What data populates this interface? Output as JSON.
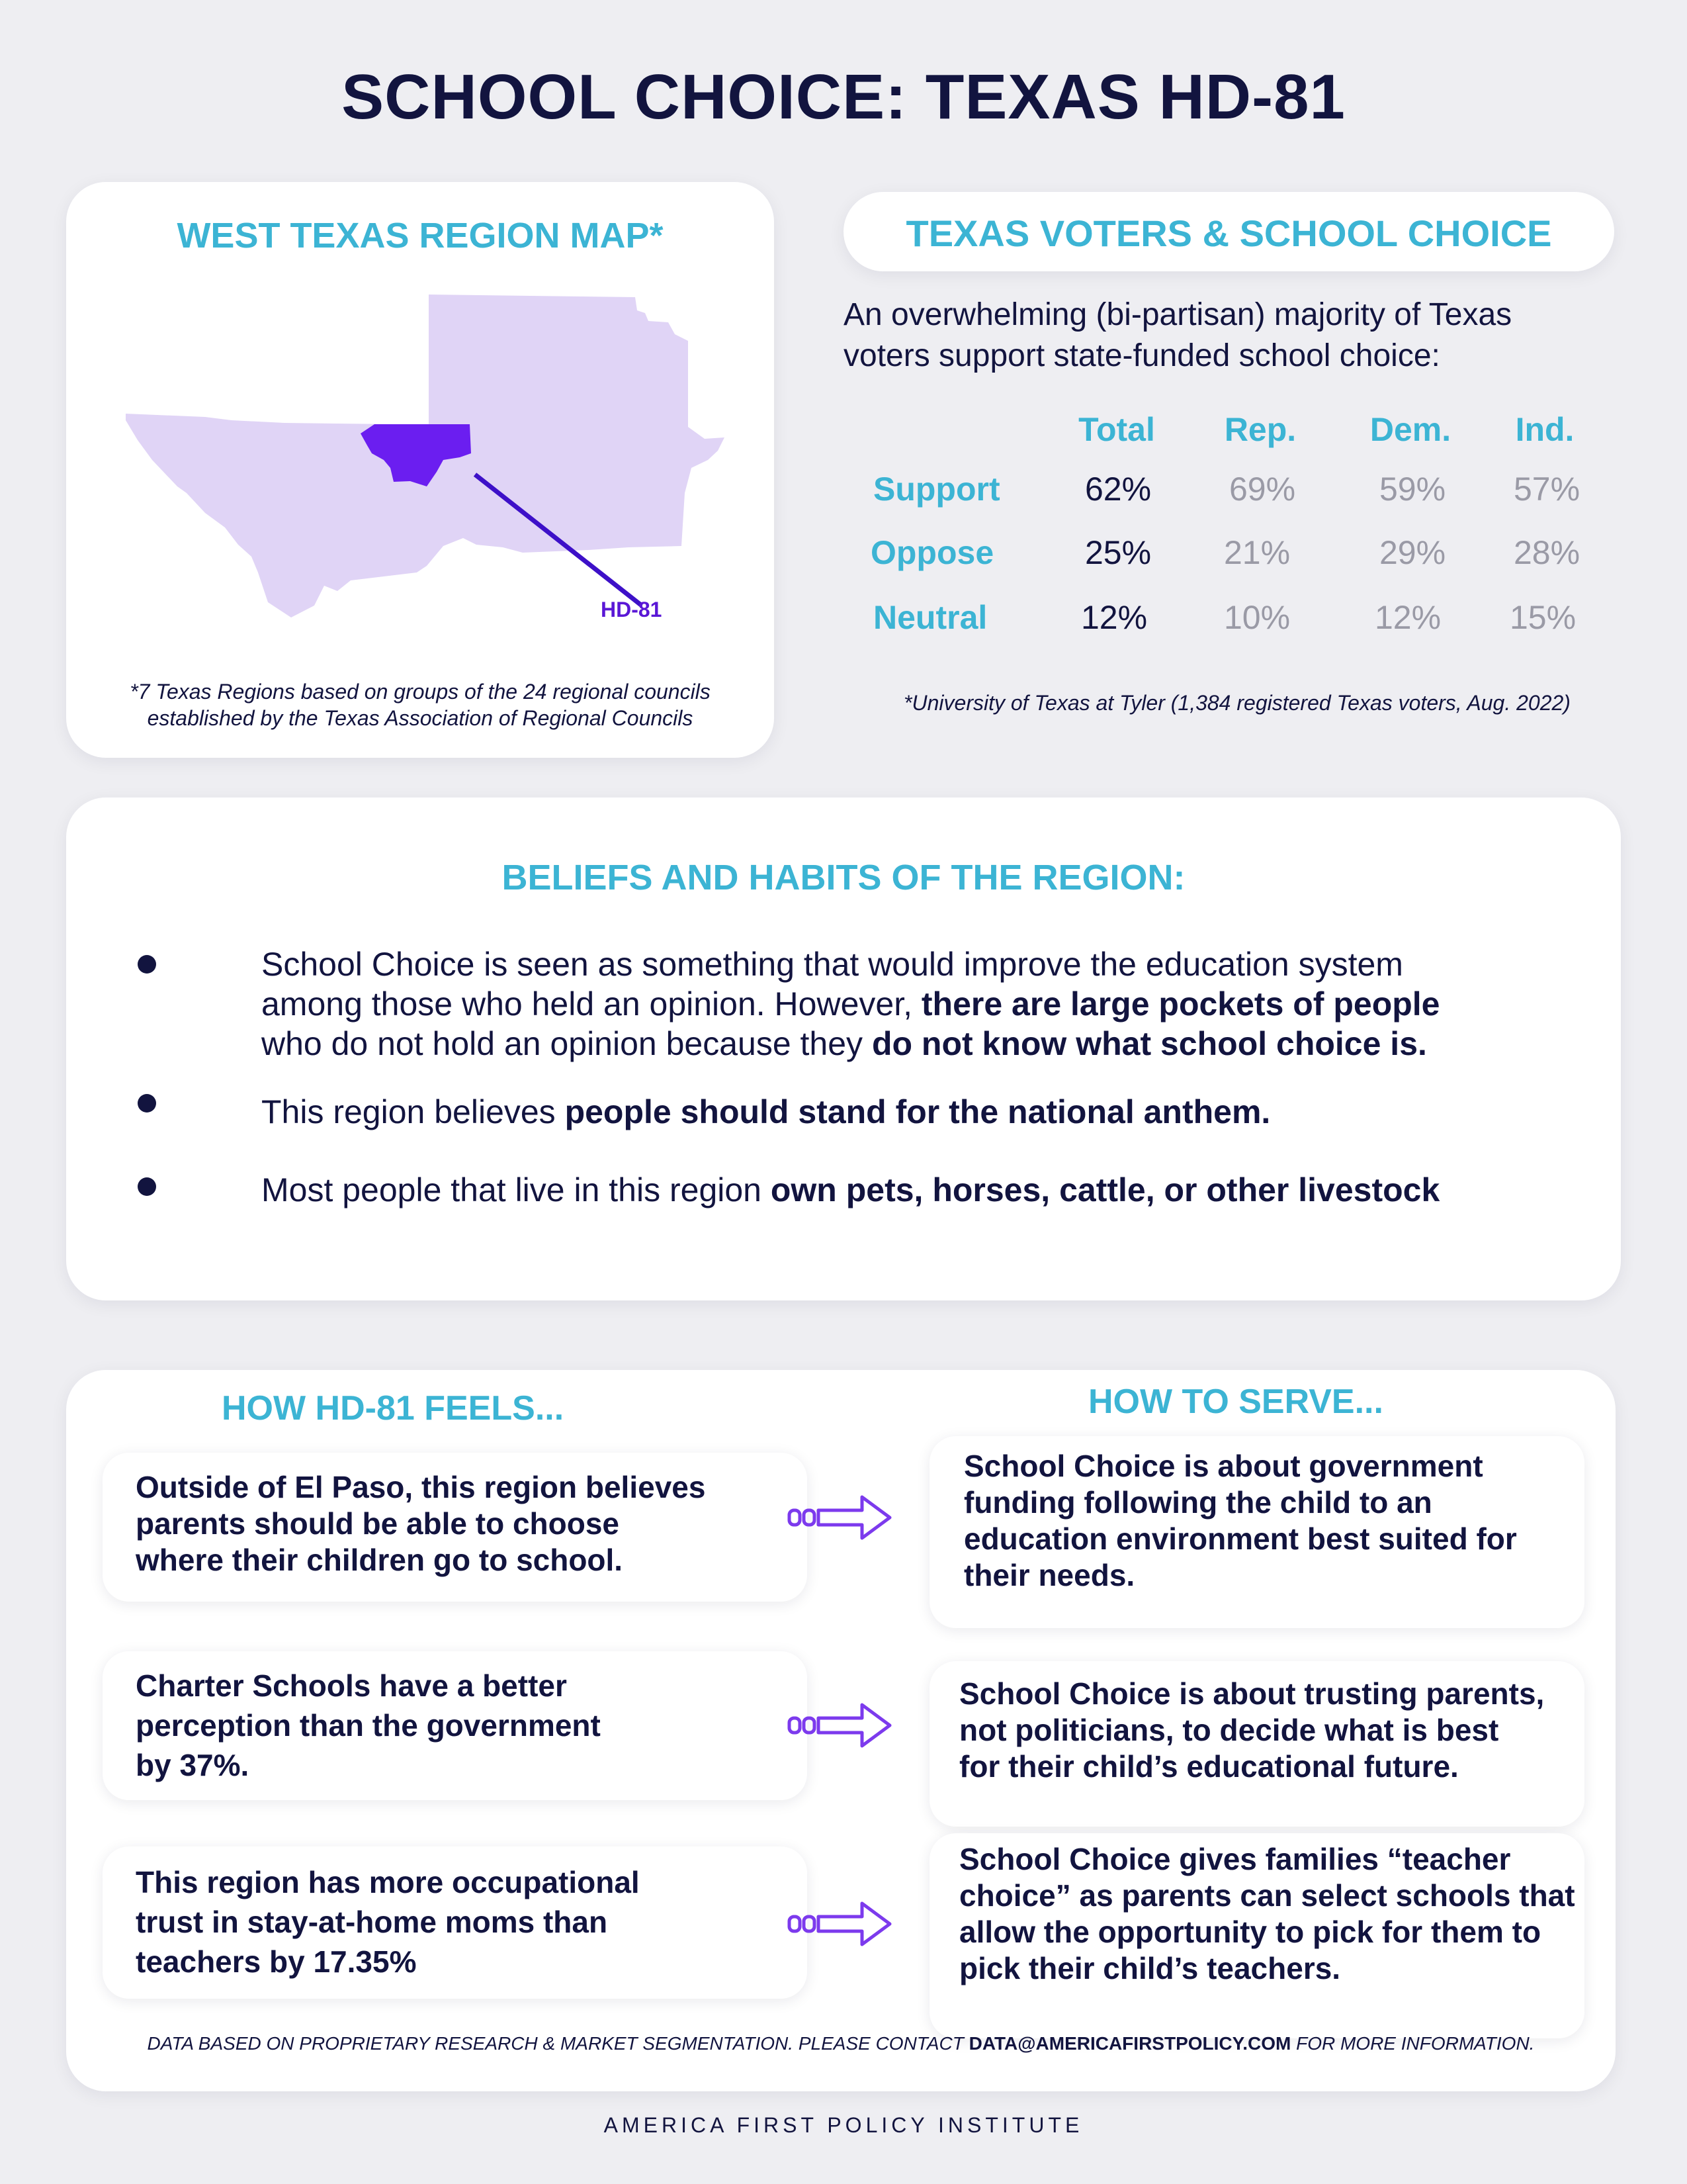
{
  "title": "SCHOOL CHOICE: TEXAS HD-81",
  "map_card": {
    "heading": "WEST TEXAS REGION MAP*",
    "district_label": "HD-81",
    "footnote_line1": "*7 Texas Regions based on groups of the 24 regional councils",
    "footnote_line2": "established by the Texas Association of Regional Councils",
    "colors": {
      "region": "#e0d4f6",
      "district": "#6b1ef0",
      "line": "#3d10c8"
    }
  },
  "voters_card": {
    "heading": "TEXAS VOTERS & SCHOOL CHOICE",
    "intro_line1": "An overwhelming (bi-partisan) majority of Texas",
    "intro_line2": "voters support state-funded school choice:",
    "columns": [
      "Total",
      "Rep.",
      "Dem.",
      "Ind."
    ],
    "rows": [
      {
        "label": "Support",
        "values": [
          "62%",
          "69%",
          "59%",
          "57%"
        ]
      },
      {
        "label": "Oppose",
        "values": [
          "25%",
          "21%",
          "29%",
          "28%"
        ]
      },
      {
        "label": "Neutral",
        "values": [
          "12%",
          "10%",
          "12%",
          "15%"
        ]
      }
    ],
    "source": "*University of Texas at Tyler (1,384 registered Texas voters, Aug. 2022)"
  },
  "beliefs": {
    "heading": "BELIEFS AND HABITS OF THE REGION:",
    "b1_line1": "School Choice is seen as something that would improve the education system",
    "b1_line2_plain": "among those who held an opinion. However, ",
    "b1_line2_bold": "there are large pockets of people",
    "b1_line3_plain": "who do not hold an opinion because they ",
    "b1_line3_bold": "do not know what school choice is.",
    "b2_plain": "This region believes ",
    "b2_bold": "people should stand for the national anthem.",
    "b3_plain": "Most people that live in this region ",
    "b3_bold": "own pets, horses, cattle, or other livestock"
  },
  "feels": {
    "heading_left": "HOW HD-81 FEELS...",
    "heading_right": "HOW TO SERVE...",
    "rows": [
      {
        "left": [
          "Outside of El Paso, this region believes",
          "parents should be able to choose",
          "where their children go to school."
        ],
        "right": [
          "School Choice is about government",
          "funding following the child to an",
          "education environment best suited for",
          "their needs."
        ]
      },
      {
        "left": [
          "Charter Schools have a better",
          "perception than the government",
          "by 37%."
        ],
        "right": [
          "School Choice is about trusting parents,",
          "not politicians, to decide what is best",
          "for their child’s educational future."
        ]
      },
      {
        "left": [
          "This region has more occupational",
          "trust in stay-at-home moms than",
          "teachers by 17.35%"
        ],
        "right": [
          "School Choice gives families “teacher",
          "choice” as parents can select schools that",
          "allow the opportunity to pick for them to",
          "pick their child’s teachers."
        ]
      }
    ],
    "disclaimer_plain1": "DATA BASED ON PROPRIETARY RESEARCH & MARKET SEGMENTATION. PLEASE CONTACT ",
    "disclaimer_email": "DATA@AMERICAFIRSTPOLICY.COM",
    "disclaimer_plain2": " FOR MORE INFORMATION."
  },
  "footer": "AMERICA FIRST POLICY INSTITUTE",
  "colors": {
    "navy": "#12143f",
    "teal": "#3cb4d4",
    "arrow": "#7c3aed",
    "background": "#eeeef2"
  }
}
